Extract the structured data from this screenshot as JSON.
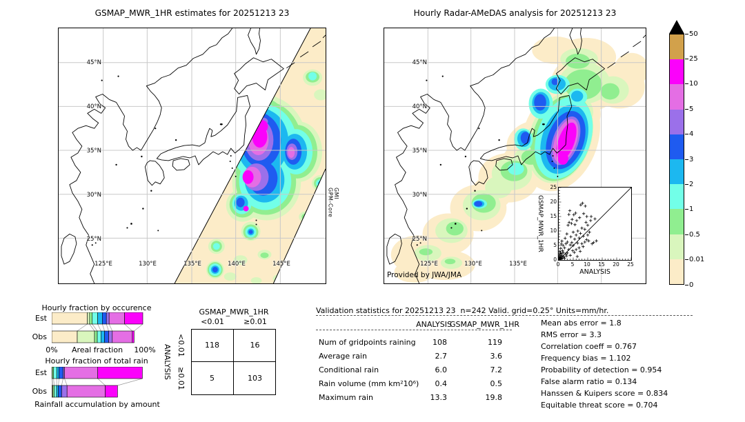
{
  "left_panel": {
    "title": "GSMAP_MWR_1HR estimates for 20251213 23",
    "swath_label": "GPM-Core\nGMI",
    "lat_labels": [
      "45°N",
      "40°N",
      "35°N",
      "30°N",
      "25°N"
    ],
    "lon_labels": [
      "125°E",
      "130°E",
      "135°E",
      "140°E",
      "145°E"
    ]
  },
  "right_panel": {
    "title": "Hourly Radar-AMeDAS analysis for 20251213 23",
    "credit": "Provided by JWA/JMA",
    "lat_labels": [
      "45°N",
      "40°N",
      "35°N",
      "30°N",
      "25°N"
    ],
    "lon_labels": [
      "125°E",
      "130°E",
      "135°E"
    ],
    "inset": {
      "xlabel": "ANALYSIS",
      "ylabel": "GSMAP_MWR_1HR",
      "tick_labels": [
        "0",
        "5",
        "10",
        "15",
        "20",
        "25"
      ]
    }
  },
  "colorbar": {
    "labels_top_to_bottom": [
      "50",
      "25",
      "10",
      "5",
      "4",
      "3",
      "2",
      "1",
      "0.5",
      "0.01",
      "0"
    ],
    "colors_top_to_bottom": [
      "#d2a14b",
      "#fb02fb",
      "#e46ee4",
      "#9b70ea",
      "#1f5bf0",
      "#1cb8f0",
      "#72ffe8",
      "#90ee90",
      "#d9f6bd",
      "#fcecc8"
    ],
    "overflow_marker": "black-triangle"
  },
  "occurrence_chart": {
    "title": "Hourly fraction by occurence",
    "row_labels": [
      "Est",
      "Obs"
    ],
    "x_min_label": "0%",
    "x_axis_label": "Areal fraction",
    "x_max_label": "100%"
  },
  "totalrain_chart": {
    "title": "Hourly fraction of total rain",
    "row_labels": [
      "Est",
      "Obs"
    ],
    "footer": "Rainfall accumulation by amount"
  },
  "contingency": {
    "title": "GSMAP_MWR_1HR",
    "col_labels": [
      "<0.01",
      "≥0.01"
    ],
    "row_axis_label": "ANALYSIS",
    "row_labels": [
      "<0.01",
      "≥0.01"
    ],
    "cells": [
      [
        "118",
        "16"
      ],
      [
        "5",
        "103"
      ]
    ]
  },
  "validation": {
    "title": "Validation statistics for 20251213 23  n=242 Valid. grid=0.25° Units=mm/hr.",
    "col_headers": [
      "ANALYSIS",
      "GSMAP_MWR_1HR"
    ],
    "rows": [
      {
        "label": "Num of gridpoints raining",
        "analysis": "108",
        "gsmap": "119"
      },
      {
        "label": "Average rain",
        "analysis": "2.7",
        "gsmap": "3.6"
      },
      {
        "label": "Conditional rain",
        "analysis": "6.0",
        "gsmap": "7.2"
      },
      {
        "label": "Rain volume (mm km²10⁶)",
        "analysis": "0.4",
        "gsmap": "0.5"
      },
      {
        "label": "Maximum rain",
        "analysis": "13.3",
        "gsmap": "19.8"
      }
    ],
    "stats": [
      {
        "label": "Mean abs error",
        "value": "1.8"
      },
      {
        "label": "RMS error",
        "value": "3.3"
      },
      {
        "label": "Correlation coeff",
        "value": "0.767"
      },
      {
        "label": "Frequency bias",
        "value": "1.102"
      },
      {
        "label": "Probability of detection",
        "value": "0.954"
      },
      {
        "label": "False alarm ratio",
        "value": "0.134"
      },
      {
        "label": "Hanssen & Kuipers score",
        "value": "0.834"
      },
      {
        "label": "Equitable threat score",
        "value": "0.704"
      }
    ]
  },
  "chart_data": [
    {
      "id": "colorbar",
      "type": "colorbar",
      "levels": [
        0,
        0.01,
        0.5,
        1,
        2,
        3,
        4,
        5,
        10,
        25,
        50
      ],
      "colors_bottom_to_top": [
        "#fcecc8",
        "#d9f6bd",
        "#90ee90",
        "#72ffe8",
        "#1cb8f0",
        "#1f5bf0",
        "#9b70ea",
        "#e46ee4",
        "#fb02fb",
        "#d2a14b"
      ],
      "units": "mm/hr"
    },
    {
      "id": "occurrence-fractions",
      "type": "bar",
      "orientation": "horizontal-stacked",
      "title": "Hourly fraction by occurence",
      "xlabel": "Areal fraction",
      "xlim": [
        "0%",
        "100%"
      ],
      "classes": [
        "<0.01",
        "0.01-0.5",
        "0.5-1",
        "1-2",
        "2-3",
        "3-4",
        "4-5",
        "5-10",
        "10-25"
      ],
      "series": [
        {
          "name": "Est",
          "values": [
            39,
            2.5,
            3,
            6,
            5,
            4.5,
            3,
            17,
            20
          ]
        },
        {
          "name": "Obs",
          "values": [
            28,
            19,
            3,
            4,
            4,
            4.5,
            4,
            22,
            2
          ]
        }
      ]
    },
    {
      "id": "totalrain-fractions",
      "type": "bar",
      "orientation": "horizontal-stacked",
      "title": "Hourly fraction of total rain",
      "xlabel": "Rainfall accumulation by amount",
      "xlim": [
        "0%",
        "100%"
      ],
      "classes": [
        "<0.01",
        "0.01-0.5",
        "0.5-1",
        "1-2",
        "2-3",
        "3-4",
        "4-5",
        "5-10",
        "10-25"
      ],
      "series": [
        {
          "name": "Est",
          "values": [
            0,
            0.5,
            1.5,
            3.5,
            2.5,
            4.5,
            1.5,
            36.5,
            49
          ]
        },
        {
          "name": "Obs",
          "values": [
            0.3,
            1,
            1.5,
            2.5,
            2,
            3.5,
            6,
            42,
            13.5
          ]
        }
      ]
    },
    {
      "id": "analysis-vs-gsmap",
      "type": "scatter",
      "xlabel": "ANALYSIS",
      "ylabel": "GSMAP_MWR_1HR",
      "xlim": [
        0,
        25
      ],
      "ylim": [
        0,
        25
      ],
      "diagonal": true,
      "points": [
        [
          0.1,
          0.1
        ],
        [
          0.15,
          0.6
        ],
        [
          0.2,
          0.2
        ],
        [
          0.2,
          1.2
        ],
        [
          0.3,
          0.4
        ],
        [
          0.3,
          2
        ],
        [
          0.4,
          0.8
        ],
        [
          0.4,
          3
        ],
        [
          0.5,
          0.3
        ],
        [
          0.5,
          1.6
        ],
        [
          0.6,
          2.4
        ],
        [
          0.7,
          0.5
        ],
        [
          0.7,
          4
        ],
        [
          0.8,
          1
        ],
        [
          0.9,
          5.5
        ],
        [
          1,
          0.4
        ],
        [
          1,
          2.2
        ],
        [
          1.1,
          6.5
        ],
        [
          1.2,
          1.4
        ],
        [
          1.3,
          3.2
        ],
        [
          1.4,
          0.7
        ],
        [
          1.5,
          5
        ],
        [
          1.6,
          2.6
        ],
        [
          1.8,
          1.1
        ],
        [
          2,
          0.6
        ],
        [
          2,
          4.2
        ],
        [
          2.2,
          7.5
        ],
        [
          2.4,
          2
        ],
        [
          2.5,
          5.6
        ],
        [
          2.7,
          1.4
        ],
        [
          2.8,
          9
        ],
        [
          3,
          2.4
        ],
        [
          3,
          6.2
        ],
        [
          3.2,
          12
        ],
        [
          3.4,
          3.6
        ],
        [
          3.5,
          15.7
        ],
        [
          3.6,
          13
        ],
        [
          3.8,
          17
        ],
        [
          4,
          1.6
        ],
        [
          4,
          5.2
        ],
        [
          4.2,
          8
        ],
        [
          4.4,
          12.6
        ],
        [
          4.5,
          6
        ],
        [
          4.6,
          14
        ],
        [
          4.8,
          3.2
        ],
        [
          5,
          5
        ],
        [
          5,
          9.6
        ],
        [
          5.2,
          15.6
        ],
        [
          5.4,
          2.6
        ],
        [
          5.5,
          7.2
        ],
        [
          5.6,
          12.2
        ],
        [
          5.8,
          16.2
        ],
        [
          6,
          3.6
        ],
        [
          6,
          8.6
        ],
        [
          6.2,
          13.6
        ],
        [
          6.4,
          1.2
        ],
        [
          6.5,
          5.8
        ],
        [
          6.6,
          10
        ],
        [
          7,
          4.2
        ],
        [
          7,
          7.6
        ],
        [
          7.2,
          14.6
        ],
        [
          7.4,
          3
        ],
        [
          7.5,
          9.2
        ],
        [
          7.6,
          19
        ],
        [
          8,
          5.6
        ],
        [
          8,
          11
        ],
        [
          8.2,
          19.6
        ],
        [
          8.4,
          4.6
        ],
        [
          8.5,
          8.2
        ],
        [
          8.6,
          16
        ],
        [
          9,
          6.2
        ],
        [
          9,
          10.6
        ],
        [
          9.2,
          18.6
        ],
        [
          9.4,
          13
        ],
        [
          9.6,
          7
        ],
        [
          9.7,
          15
        ],
        [
          10,
          8.6
        ],
        [
          10,
          12
        ],
        [
          10.3,
          6.6
        ],
        [
          10.6,
          9.6
        ],
        [
          11,
          13.6
        ],
        [
          11.2,
          15
        ],
        [
          11.5,
          5.6
        ],
        [
          12,
          6
        ],
        [
          12.5,
          14.2
        ],
        [
          13,
          6.6
        ]
      ]
    },
    {
      "id": "contingency-table",
      "type": "table",
      "title": "GSMAP_MWR_1HR",
      "columns": [
        "<0.01",
        "≥0.01"
      ],
      "row_axis": "ANALYSIS",
      "rows": [
        "<0.01",
        "≥0.01"
      ],
      "values": [
        [
          118,
          16
        ],
        [
          5,
          103
        ]
      ]
    },
    {
      "id": "validation-table",
      "type": "table",
      "title": "Validation statistics for 20251213 23  n=242 Valid. grid=0.25° Units=mm/hr.",
      "columns": [
        "ANALYSIS",
        "GSMAP_MWR_1HR"
      ],
      "rows": [
        [
          "Num of gridpoints raining",
          108,
          119
        ],
        [
          "Average rain",
          2.7,
          3.6
        ],
        [
          "Conditional rain",
          6.0,
          7.2
        ],
        [
          "Rain volume (mm km²10⁶)",
          0.4,
          0.5
        ],
        [
          "Maximum rain",
          13.3,
          19.8
        ]
      ],
      "scalar_stats": {
        "Mean abs error": 1.8,
        "RMS error": 3.3,
        "Correlation coeff": 0.767,
        "Frequency bias": 1.102,
        "Probability of detection": 0.954,
        "False alarm ratio": 0.134,
        "Hanssen & Kuipers score": 0.834,
        "Equitable threat score": 0.704
      }
    }
  ]
}
